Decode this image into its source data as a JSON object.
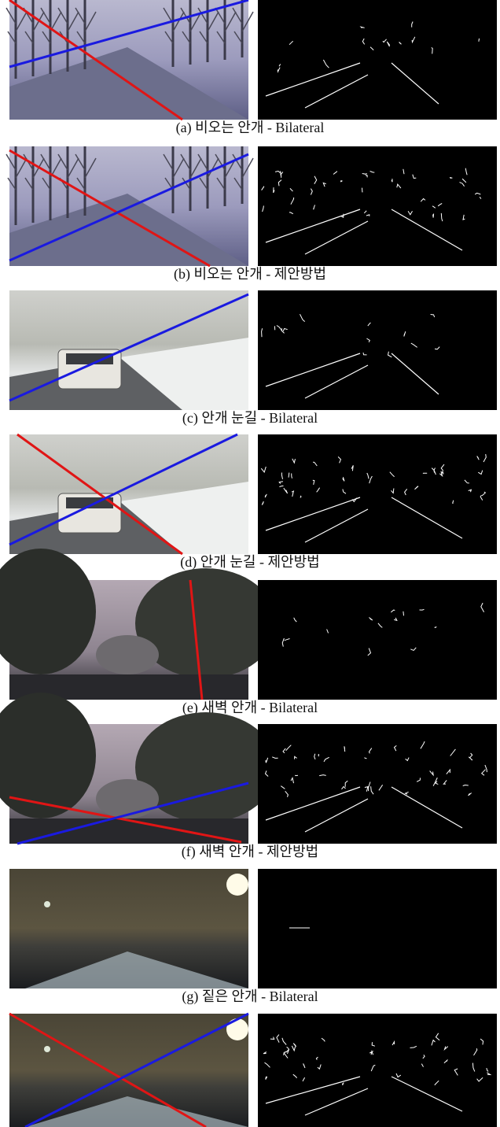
{
  "figure": {
    "captions": [
      "(a) 비오는 안개 - Bilateral",
      "(b) 비오는 안개 - 제안방법",
      "(c) 안개 눈길 - Bilateral",
      "(d) 안개 눈길 - 제안방법",
      "(e) 새벽 안개 - Bilateral",
      "(f) 새벽 안개 - 제안방법",
      "(g) 짙은 안개 - Bilateral"
    ]
  }
}
